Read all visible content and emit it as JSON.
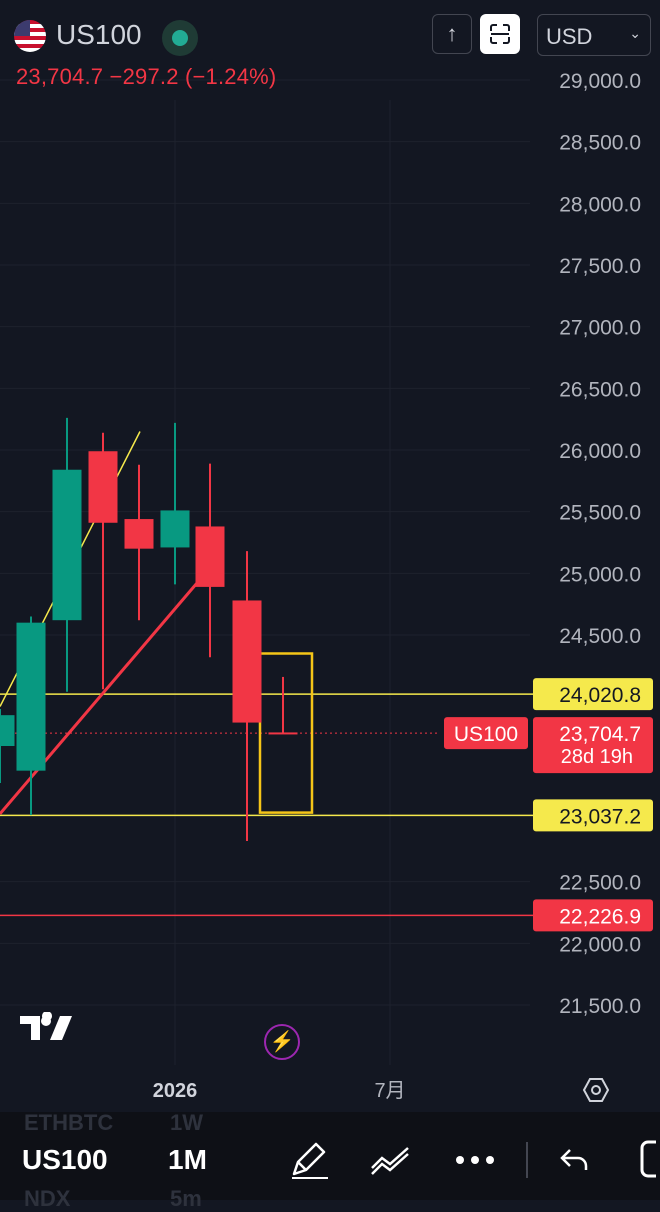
{
  "header": {
    "symbol": "US100",
    "quote": "23,704.7 −297.2 (−1.24%)",
    "up_button": "↑",
    "currency": "USD"
  },
  "chart_data": {
    "type": "candlestick",
    "interval": "1M",
    "y_ticks": [
      "29,000.0",
      "28,500.0",
      "28,000.0",
      "27,500.0",
      "27,000.0",
      "26,500.0",
      "26,000.0",
      "25,500.0",
      "25,000.0",
      "24,500.0",
      "22,500.0",
      "22,000.0",
      "21,500.0"
    ],
    "x_ticks": [
      "2026",
      "7月"
    ],
    "candles": [
      {
        "open": 23600,
        "high": 23900,
        "low": 23300,
        "close": 23850
      },
      {
        "open": 23400,
        "high": 24650,
        "low": 23040,
        "close": 24600
      },
      {
        "open": 24620,
        "high": 26260,
        "low": 24040,
        "close": 25840
      },
      {
        "open": 25990,
        "high": 26140,
        "low": 24060,
        "close": 25410
      },
      {
        "open": 25440,
        "high": 25880,
        "low": 24620,
        "close": 25200
      },
      {
        "open": 25210,
        "high": 26220,
        "low": 24910,
        "close": 25510
      },
      {
        "open": 25380,
        "high": 25890,
        "low": 24320,
        "close": 24890
      },
      {
        "open": 24780,
        "high": 25180,
        "low": 22830,
        "close": 23790
      },
      {
        "open": 23710,
        "high": 24160,
        "low": 23704,
        "close": 23704.7
      }
    ],
    "price_lines": [
      {
        "value": 24020.8,
        "label": "24,020.8",
        "color": "#f5e94c"
      },
      {
        "value": 23037.2,
        "label": "23,037.2",
        "color": "#f5e94c"
      },
      {
        "value": 22226.9,
        "label": "22,226.9",
        "color": "#f23645"
      }
    ],
    "last_price": {
      "value": 23704.7,
      "symbol": "US100",
      "label": "23,704.7",
      "countdown": "28d 19h"
    },
    "colors": {
      "up": "#089981",
      "down": "#f23645",
      "trend": "#f23645",
      "channel": "#f5e94c",
      "box": "#f5c518",
      "background": "#131722"
    }
  },
  "bottom": {
    "symbol": "US100",
    "interval": "1M",
    "ghost_top": [
      "ETHBTC",
      "1W"
    ],
    "ghost_bottom": [
      "NDX",
      "5m"
    ]
  }
}
